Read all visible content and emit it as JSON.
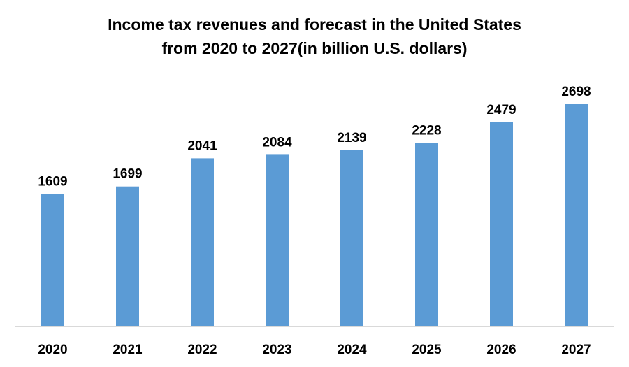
{
  "chart_data": {
    "type": "bar",
    "title_lines": [
      "Income tax revenues and forecast in the United States",
      "from 2020 to 2027(in billion U.S. dollars)"
    ],
    "categories": [
      "2020",
      "2021",
      "2022",
      "2023",
      "2024",
      "2025",
      "2026",
      "2027"
    ],
    "values": [
      1609,
      1699,
      2041,
      2084,
      2139,
      2228,
      2479,
      2698
    ],
    "xlabel": "",
    "ylabel": "",
    "ylim": [
      0,
      2698
    ],
    "grid": false,
    "legend": "none",
    "bar_color": "#5b9bd5",
    "axis_color": "#d9d9d9"
  }
}
